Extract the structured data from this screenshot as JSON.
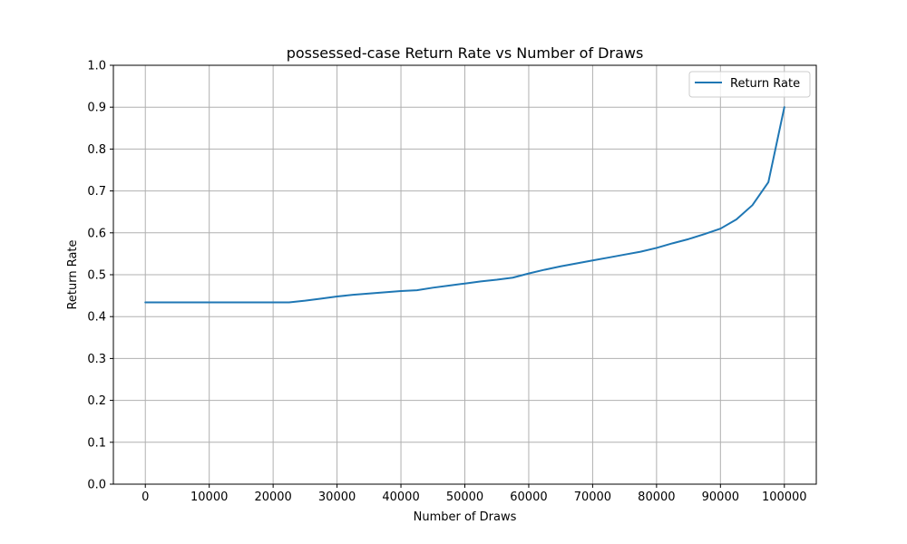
{
  "chart_data": {
    "type": "line",
    "title": "possessed-case Return Rate vs Number of Draws",
    "xlabel": "Number of Draws",
    "ylabel": "Return Rate",
    "xlim": [
      -5000,
      105000
    ],
    "ylim": [
      0.0,
      1.0
    ],
    "xticks": [
      0,
      10000,
      20000,
      30000,
      40000,
      50000,
      60000,
      70000,
      80000,
      90000,
      100000
    ],
    "yticks": [
      0.0,
      0.1,
      0.2,
      0.3,
      0.4,
      0.5,
      0.6,
      0.7,
      0.8,
      0.9,
      1.0
    ],
    "xtick_labels": [
      "0",
      "10000",
      "20000",
      "30000",
      "40000",
      "50000",
      "60000",
      "70000",
      "80000",
      "90000",
      "100000"
    ],
    "ytick_labels": [
      "0.0",
      "0.1",
      "0.2",
      "0.3",
      "0.4",
      "0.5",
      "0.6",
      "0.7",
      "0.8",
      "0.9",
      "1.0"
    ],
    "grid": true,
    "legend_position": "top-right",
    "series": [
      {
        "name": "Return Rate",
        "color": "#1f77b4",
        "x": [
          0,
          2500,
          5000,
          7500,
          10000,
          12500,
          15000,
          17500,
          20000,
          22500,
          25000,
          27500,
          30000,
          32500,
          35000,
          37500,
          40000,
          42500,
          45000,
          47500,
          50000,
          52500,
          55000,
          57500,
          60000,
          62500,
          65000,
          67500,
          70000,
          72500,
          75000,
          77500,
          80000,
          82500,
          85000,
          87500,
          90000,
          92500,
          95000,
          97500,
          100000
        ],
        "y": [
          0.434,
          0.434,
          0.434,
          0.434,
          0.434,
          0.434,
          0.434,
          0.434,
          0.434,
          0.434,
          0.438,
          0.443,
          0.448,
          0.452,
          0.455,
          0.458,
          0.461,
          0.463,
          0.469,
          0.474,
          0.479,
          0.484,
          0.488,
          0.493,
          0.503,
          0.512,
          0.52,
          0.527,
          0.534,
          0.541,
          0.548,
          0.555,
          0.564,
          0.575,
          0.585,
          0.597,
          0.61,
          0.632,
          0.666,
          0.721,
          0.9
        ]
      }
    ]
  }
}
